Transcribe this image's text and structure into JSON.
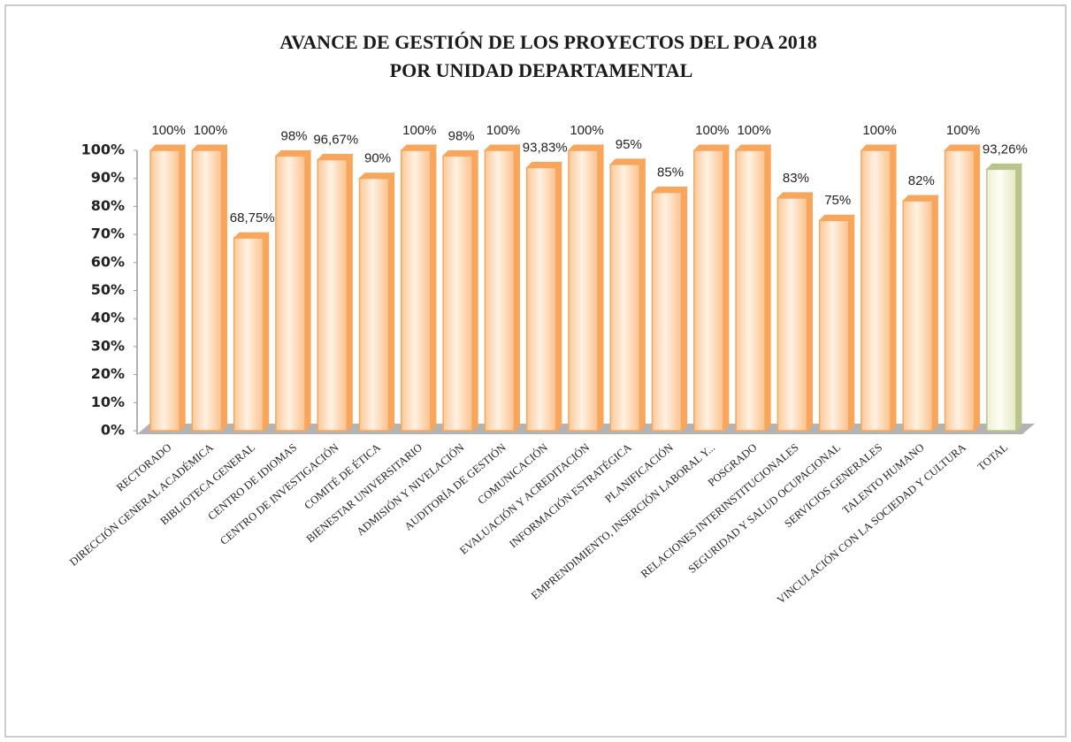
{
  "chart_data": {
    "type": "bar3d",
    "title": "AVANCE DE GESTIÓN DE LOS PROYECTOS DEL POA 2018",
    "subtitle": "POR UNIDAD DEPARTAMENTAL",
    "categories": [
      "RECTORADO",
      "DIRECCIÓN GENERAL ACADÉMICA",
      "BIBLIOTECA GENERAL",
      "CENTRO DE IDIOMAS",
      "CENTRO DE INVESTIGACIÓN",
      "COMITÉ DE ÉTICA",
      "BIENESTAR UNIVERSITARIO",
      "ADMISIÓN Y NIVELACIÓN",
      "AUDITORÍA DE GESTIÓN",
      "COMUNICACIÓN",
      "EVALUACIÓN Y ACREDITACIÓN",
      "INFORMACIÓN ESTRATÉGICA",
      "PLANIFICACIÓN",
      "EMPRENDIMIENTO, INSERCIÓN LABORAL Y...",
      "POSGRADO",
      "RELACIONES INTERINSTITUCIONALES",
      "SEGURIDAD Y SALUD OCUPACIONAL",
      "SERVICIOS GENERALES",
      "TALENTO HUMANO",
      "VINCULACIÓN CON LA SOCIEDAD Y CULTURA",
      "TOTAL"
    ],
    "values": [
      100,
      100,
      68.75,
      98,
      96.67,
      90,
      100,
      98,
      100,
      93.83,
      100,
      95,
      85,
      100,
      100,
      83,
      75,
      100,
      82,
      100,
      93.26
    ],
    "value_labels": [
      "100%",
      "100%",
      "68,75%",
      "98%",
      "96,67%",
      "90%",
      "100%",
      "98%",
      "100%",
      "93,83%",
      "100%",
      "95%",
      "85%",
      "100%",
      "100%",
      "83%",
      "75%",
      "100%",
      "82%",
      "100%",
      "93,26%"
    ],
    "colors": [
      "#f7a65c",
      "#f7a65c",
      "#f7a65c",
      "#f7a65c",
      "#f7a65c",
      "#f7a65c",
      "#f7a65c",
      "#f7a65c",
      "#f7a65c",
      "#f7a65c",
      "#f7a65c",
      "#f7a65c",
      "#f7a65c",
      "#f7a65c",
      "#f7a65c",
      "#f7a65c",
      "#f7a65c",
      "#f7a65c",
      "#f7a65c",
      "#f7a65c",
      "#b9c48a"
    ],
    "ylim": [
      0,
      100
    ],
    "yticks": [
      {
        "value": 0,
        "label": "0%"
      },
      {
        "value": 10,
        "label": "10%"
      },
      {
        "value": 20,
        "label": "20%"
      },
      {
        "value": 30,
        "label": "30%"
      },
      {
        "value": 40,
        "label": "40%"
      },
      {
        "value": 50,
        "label": "50%"
      },
      {
        "value": 60,
        "label": "60%"
      },
      {
        "value": 70,
        "label": "70%"
      },
      {
        "value": 80,
        "label": "80%"
      },
      {
        "value": 90,
        "label": "90%"
      },
      {
        "value": 100,
        "label": "100%"
      }
    ],
    "grid": false
  }
}
